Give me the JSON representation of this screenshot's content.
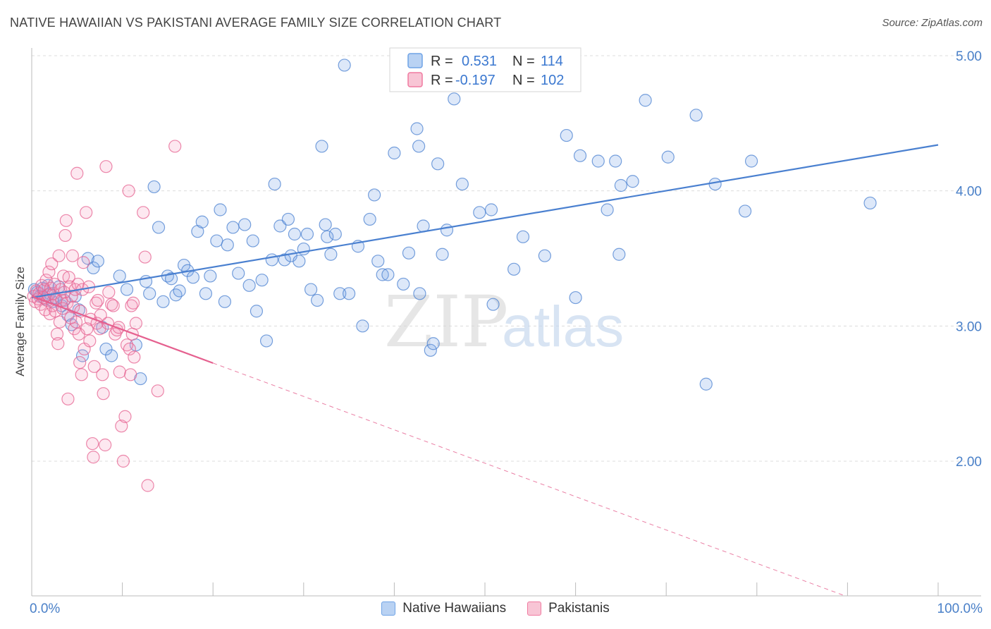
{
  "title": "NATIVE HAWAIIAN VS PAKISTANI AVERAGE FAMILY SIZE CORRELATION CHART",
  "source": "Source: ZipAtlas.com",
  "watermark": {
    "zip": "ZIP",
    "atlas": "atlas"
  },
  "legend": {
    "r_label": "R =",
    "n_label": "N =",
    "rows": [
      {
        "name": "Native Hawaiians",
        "r": "0.531",
        "n": "114",
        "color": "#6fa3e6",
        "fill": "#b9d2f3"
      },
      {
        "name": "Pakistanis",
        "r": "-0.197",
        "n": "102",
        "color": "#f07aa0",
        "fill": "#f8c5d5"
      }
    ]
  },
  "chart_data": {
    "type": "scatter",
    "title": "NATIVE HAWAIIAN VS PAKISTANI AVERAGE FAMILY SIZE CORRELATION CHART",
    "xlabel": "",
    "ylabel": "Average Family Size",
    "xlim": [
      0,
      100
    ],
    "ylim": [
      1.0,
      5.1
    ],
    "x_tick_labels": [
      "0.0%",
      "100.0%"
    ],
    "y_ticks": [
      2.0,
      3.0,
      4.0,
      5.0
    ],
    "y_tick_labels": [
      "2.00",
      "3.00",
      "4.00",
      "5.00"
    ],
    "grid": true,
    "series": [
      {
        "name": "Native Hawaiians",
        "color": "#4a80d0",
        "fill": "rgba(120,165,230,0.25)",
        "trend": {
          "x0": 0,
          "y0": 3.21,
          "x1": 100,
          "y1": 4.34,
          "solid_to": 100
        },
        "points": [
          [
            0.3,
            3.27
          ],
          [
            0.6,
            3.25
          ],
          [
            0.9,
            3.22
          ],
          [
            1.2,
            3.28
          ],
          [
            1.5,
            3.2
          ],
          [
            1.8,
            3.3
          ],
          [
            2.0,
            3.24
          ],
          [
            2.3,
            3.18
          ],
          [
            2.6,
            3.21
          ],
          [
            3.0,
            3.29
          ],
          [
            3.3,
            3.15
          ],
          [
            3.6,
            3.19
          ],
          [
            4.0,
            3.08
          ],
          [
            4.4,
            3.01
          ],
          [
            4.8,
            3.22
          ],
          [
            5.2,
            3.12
          ],
          [
            5.6,
            2.78
          ],
          [
            6.2,
            3.5
          ],
          [
            6.8,
            3.43
          ],
          [
            7.3,
            3.48
          ],
          [
            7.8,
            2.99
          ],
          [
            8.2,
            2.83
          ],
          [
            8.8,
            2.78
          ],
          [
            9.7,
            3.37
          ],
          [
            10.5,
            3.27
          ],
          [
            11.5,
            2.86
          ],
          [
            12.0,
            2.61
          ],
          [
            12.6,
            3.33
          ],
          [
            13.0,
            3.24
          ],
          [
            13.5,
            4.03
          ],
          [
            14.0,
            3.73
          ],
          [
            14.5,
            3.18
          ],
          [
            15.0,
            3.37
          ],
          [
            15.4,
            3.35
          ],
          [
            15.9,
            3.23
          ],
          [
            16.3,
            3.26
          ],
          [
            16.8,
            3.45
          ],
          [
            17.2,
            3.41
          ],
          [
            17.8,
            3.36
          ],
          [
            18.3,
            3.7
          ],
          [
            18.8,
            3.77
          ],
          [
            19.2,
            3.24
          ],
          [
            19.7,
            3.37
          ],
          [
            20.4,
            3.63
          ],
          [
            20.8,
            3.86
          ],
          [
            21.3,
            3.18
          ],
          [
            21.6,
            3.6
          ],
          [
            22.2,
            3.73
          ],
          [
            22.8,
            3.39
          ],
          [
            23.5,
            3.75
          ],
          [
            24.0,
            3.3
          ],
          [
            24.4,
            3.63
          ],
          [
            24.8,
            3.11
          ],
          [
            25.4,
            3.34
          ],
          [
            25.9,
            2.89
          ],
          [
            26.5,
            3.49
          ],
          [
            26.8,
            4.05
          ],
          [
            27.4,
            3.74
          ],
          [
            27.9,
            3.49
          ],
          [
            28.3,
            3.79
          ],
          [
            28.6,
            3.52
          ],
          [
            29.0,
            3.68
          ],
          [
            29.5,
            3.48
          ],
          [
            30.0,
            3.57
          ],
          [
            30.4,
            3.68
          ],
          [
            30.8,
            3.27
          ],
          [
            31.5,
            3.19
          ],
          [
            32.0,
            4.33
          ],
          [
            32.4,
            3.75
          ],
          [
            32.6,
            3.66
          ],
          [
            33.0,
            3.53
          ],
          [
            33.5,
            3.68
          ],
          [
            34.0,
            3.24
          ],
          [
            34.5,
            4.93
          ],
          [
            35.0,
            3.24
          ],
          [
            36.0,
            3.59
          ],
          [
            36.5,
            3.0
          ],
          [
            37.3,
            3.79
          ],
          [
            37.8,
            3.97
          ],
          [
            38.2,
            3.48
          ],
          [
            38.7,
            3.38
          ],
          [
            39.3,
            3.38
          ],
          [
            40.0,
            4.28
          ],
          [
            41.0,
            3.31
          ],
          [
            41.6,
            3.54
          ],
          [
            42.5,
            4.46
          ],
          [
            42.7,
            4.33
          ],
          [
            42.8,
            3.24
          ],
          [
            43.2,
            3.74
          ],
          [
            44.0,
            2.82
          ],
          [
            44.3,
            2.87
          ],
          [
            44.8,
            4.2
          ],
          [
            45.3,
            3.53
          ],
          [
            45.8,
            3.71
          ],
          [
            46.6,
            4.68
          ],
          [
            47.5,
            4.05
          ],
          [
            49.4,
            3.84
          ],
          [
            50.7,
            3.86
          ],
          [
            50.9,
            3.16
          ],
          [
            53.2,
            3.42
          ],
          [
            54.2,
            3.66
          ],
          [
            56.6,
            3.52
          ],
          [
            59.0,
            4.41
          ],
          [
            60.0,
            3.21
          ],
          [
            60.5,
            4.26
          ],
          [
            62.5,
            4.22
          ],
          [
            63.5,
            3.86
          ],
          [
            64.4,
            4.22
          ],
          [
            64.8,
            3.53
          ],
          [
            65.0,
            4.04
          ],
          [
            66.3,
            4.07
          ],
          [
            67.7,
            4.67
          ],
          [
            70.2,
            4.25
          ],
          [
            73.3,
            4.56
          ],
          [
            74.4,
            2.57
          ],
          [
            75.4,
            4.05
          ],
          [
            78.7,
            3.85
          ],
          [
            79.4,
            4.22
          ],
          [
            92.5,
            3.91
          ]
        ]
      },
      {
        "name": "Pakistanis",
        "color": "#e5608f",
        "fill": "rgba(245,150,185,0.22)",
        "trend": {
          "x0": 0,
          "y0": 3.22,
          "x1": 100,
          "y1": 0.75,
          "solid_to": 20
        },
        "points": [
          [
            0.2,
            3.22
          ],
          [
            0.4,
            3.18
          ],
          [
            0.5,
            3.26
          ],
          [
            0.7,
            3.2
          ],
          [
            0.8,
            3.24
          ],
          [
            1.0,
            3.16
          ],
          [
            1.1,
            3.3
          ],
          [
            1.3,
            3.21
          ],
          [
            1.4,
            3.27
          ],
          [
            1.5,
            3.12
          ],
          [
            1.6,
            3.34
          ],
          [
            1.7,
            3.19
          ],
          [
            1.8,
            3.23
          ],
          [
            1.9,
            3.4
          ],
          [
            2.0,
            3.09
          ],
          [
            2.1,
            3.28
          ],
          [
            2.2,
            3.46
          ],
          [
            2.3,
            3.15
          ],
          [
            2.4,
            3.24
          ],
          [
            2.5,
            3.31
          ],
          [
            2.6,
            3.11
          ],
          [
            2.7,
            3.2
          ],
          [
            2.8,
            2.94
          ],
          [
            2.9,
            2.87
          ],
          [
            3.0,
            3.52
          ],
          [
            3.1,
            3.03
          ],
          [
            3.2,
            3.27
          ],
          [
            3.3,
            3.19
          ],
          [
            3.4,
            3.13
          ],
          [
            3.5,
            3.37
          ],
          [
            3.6,
            3.25
          ],
          [
            3.7,
            3.67
          ],
          [
            3.8,
            3.78
          ],
          [
            3.9,
            3.17
          ],
          [
            4.0,
            2.46
          ],
          [
            4.1,
            3.36
          ],
          [
            4.2,
            3.29
          ],
          [
            4.3,
            3.06
          ],
          [
            4.4,
            3.22
          ],
          [
            4.5,
            3.52
          ],
          [
            4.6,
            3.14
          ],
          [
            4.7,
            2.98
          ],
          [
            4.8,
            3.27
          ],
          [
            4.9,
            3.03
          ],
          [
            5.0,
            4.13
          ],
          [
            5.1,
            3.31
          ],
          [
            5.2,
            2.94
          ],
          [
            5.3,
            2.73
          ],
          [
            5.4,
            3.11
          ],
          [
            5.5,
            2.64
          ],
          [
            5.6,
            3.27
          ],
          [
            5.7,
            3.47
          ],
          [
            5.8,
            2.83
          ],
          [
            6.0,
            3.84
          ],
          [
            6.1,
            2.98
          ],
          [
            6.3,
            3.29
          ],
          [
            6.4,
            2.89
          ],
          [
            6.5,
            3.05
          ],
          [
            6.7,
            2.13
          ],
          [
            6.8,
            2.03
          ],
          [
            6.9,
            2.7
          ],
          [
            7.1,
            3.17
          ],
          [
            7.2,
            3.02
          ],
          [
            7.3,
            3.19
          ],
          [
            7.5,
            2.98
          ],
          [
            7.6,
            3.08
          ],
          [
            7.8,
            2.64
          ],
          [
            7.9,
            2.5
          ],
          [
            8.1,
            2.12
          ],
          [
            8.2,
            4.18
          ],
          [
            8.4,
            3.02
          ],
          [
            8.5,
            3.25
          ],
          [
            8.8,
            3.16
          ],
          [
            9.0,
            3.15
          ],
          [
            9.2,
            2.94
          ],
          [
            9.4,
            2.97
          ],
          [
            9.6,
            2.99
          ],
          [
            9.7,
            2.66
          ],
          [
            9.9,
            2.26
          ],
          [
            10.1,
            2.0
          ],
          [
            10.3,
            2.33
          ],
          [
            10.5,
            2.86
          ],
          [
            10.7,
            4.0
          ],
          [
            10.8,
            2.83
          ],
          [
            10.9,
            2.64
          ],
          [
            11.0,
            3.15
          ],
          [
            11.1,
            2.94
          ],
          [
            11.2,
            3.17
          ],
          [
            11.3,
            2.77
          ],
          [
            11.5,
            3.02
          ],
          [
            12.3,
            3.84
          ],
          [
            12.5,
            3.51
          ],
          [
            12.8,
            1.82
          ],
          [
            13.9,
            2.52
          ],
          [
            15.8,
            4.33
          ]
        ]
      }
    ]
  }
}
